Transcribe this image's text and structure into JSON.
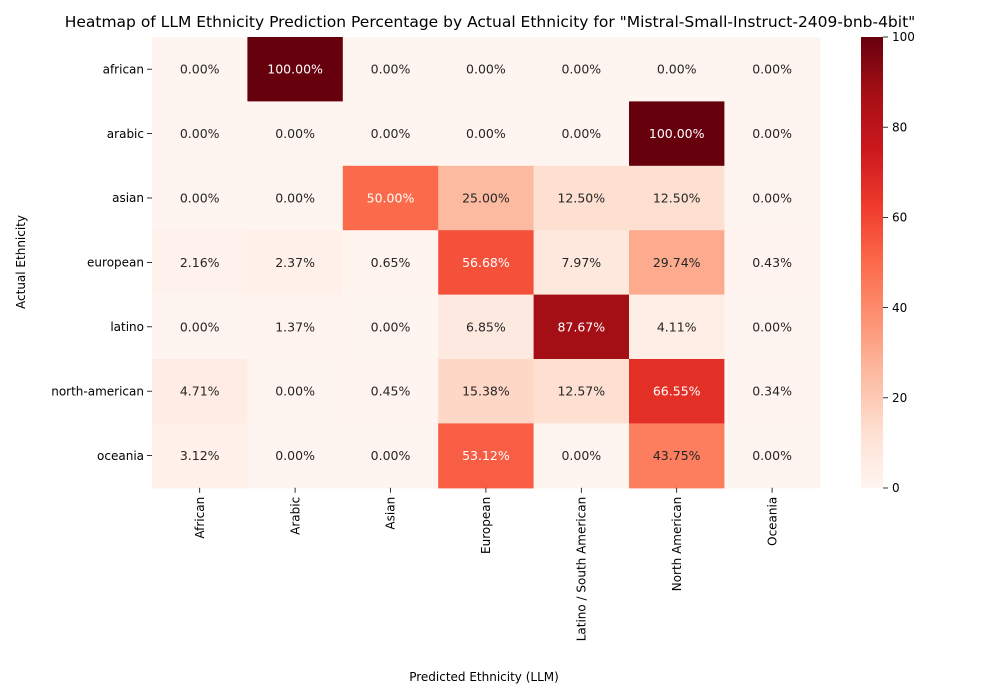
{
  "chart_data": {
    "type": "heatmap",
    "title": "Heatmap of LLM Ethnicity Prediction Percentage by Actual Ethnicity for \"Mistral-Small-Instruct-2409-bnb-4bit\"",
    "xlabel": "Predicted Ethnicity (LLM)",
    "ylabel": "Actual Ethnicity",
    "x_categories": [
      "African",
      "Arabic",
      "Asian",
      "European",
      "Latino / South American",
      "North American",
      "Oceania"
    ],
    "y_categories": [
      "african",
      "arabic",
      "asian",
      "european",
      "latino",
      "north-american",
      "oceania"
    ],
    "values": [
      [
        0.0,
        100.0,
        0.0,
        0.0,
        0.0,
        0.0,
        0.0
      ],
      [
        0.0,
        0.0,
        0.0,
        0.0,
        0.0,
        100.0,
        0.0
      ],
      [
        0.0,
        0.0,
        50.0,
        25.0,
        12.5,
        12.5,
        0.0
      ],
      [
        2.16,
        2.37,
        0.65,
        56.68,
        7.97,
        29.74,
        0.43
      ],
      [
        0.0,
        1.37,
        0.0,
        6.85,
        87.67,
        4.11,
        0.0
      ],
      [
        4.71,
        0.0,
        0.45,
        15.38,
        12.57,
        66.55,
        0.34
      ],
      [
        3.12,
        0.0,
        0.0,
        53.12,
        0.0,
        43.75,
        0.0
      ]
    ],
    "value_format": "percent_2dp",
    "colorscale": "Reds",
    "colorbar": {
      "range": [
        0,
        100
      ],
      "ticks": [
        0,
        20,
        40,
        60,
        80,
        100
      ]
    },
    "grid": false,
    "legend": "colorbar-right"
  }
}
